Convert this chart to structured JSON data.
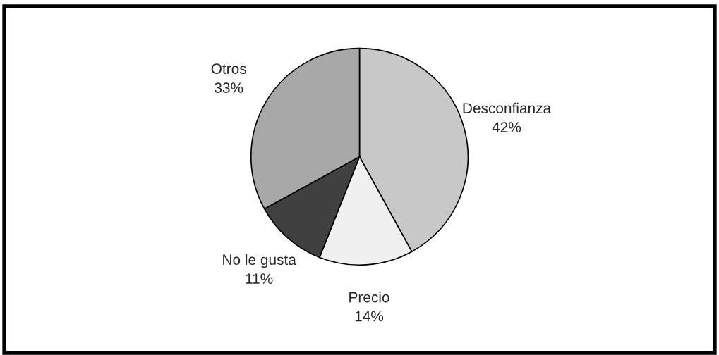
{
  "chart_data": {
    "type": "pie",
    "categories": [
      "Desconfianza",
      "Precio",
      "No le gusta",
      "Otros"
    ],
    "values": [
      42,
      14,
      11,
      33
    ],
    "value_labels": [
      "42%",
      "14%",
      "11%",
      "33%"
    ],
    "colors": [
      "#c8c8c8",
      "#f0f0f0",
      "#404040",
      "#a8a8a8"
    ],
    "legend": false
  }
}
